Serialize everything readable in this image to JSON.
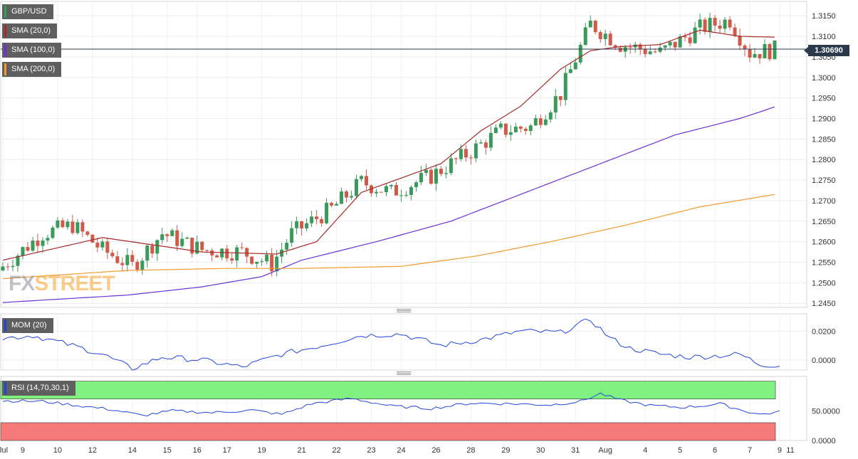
{
  "chart_data": [
    {
      "type": "candlestick",
      "symbol": "GBP/USD",
      "current_price_label": "1.30690",
      "current_price": 1.3069,
      "ylim": [
        1.244,
        1.3185
      ],
      "yticks": [
        "1.2450",
        "1.2500",
        "1.2550",
        "1.2600",
        "1.2650",
        "1.2700",
        "1.2750",
        "1.2800",
        "1.2850",
        "1.2900",
        "1.2950",
        "1.3000",
        "1.3050",
        "1.3100",
        "1.3150"
      ],
      "xticks": [
        "Jul",
        "9",
        "10",
        "12",
        "14",
        "15",
        "16",
        "17",
        "19",
        "21",
        "22",
        "23",
        "24",
        "26",
        "28",
        "29",
        "30",
        "31",
        "Aug",
        "4",
        "5",
        "6",
        "7",
        "9",
        "11"
      ],
      "series": [
        {
          "name": "GBP/USD",
          "color_up": "#3a9a5b",
          "color_down": "#d05a4a",
          "ohlc_start": 1.253,
          "ohlc_end": 1.3069,
          "bars": 156
        },
        {
          "name": "SMA (20,0)",
          "color": "#a52a2a",
          "anchors": [
            [
              0,
              1.2555
            ],
            [
              20,
              1.261
            ],
            [
              40,
              1.2575
            ],
            [
              55,
              1.257
            ],
            [
              63,
              1.26
            ],
            [
              72,
              1.272
            ],
            [
              80,
              1.2755
            ],
            [
              88,
              1.279
            ],
            [
              96,
              1.287
            ],
            [
              104,
              1.293
            ],
            [
              112,
              1.302
            ],
            [
              118,
              1.3065
            ],
            [
              124,
              1.3075
            ],
            [
              132,
              1.308
            ],
            [
              140,
              1.3115
            ],
            [
              148,
              1.31
            ],
            [
              155,
              1.3098
            ]
          ]
        },
        {
          "name": "SMA (100,0)",
          "color": "#6a2fd6",
          "anchors": [
            [
              0,
              1.2452
            ],
            [
              25,
              1.247
            ],
            [
              40,
              1.249
            ],
            [
              52,
              1.2515
            ],
            [
              60,
              1.2555
            ],
            [
              75,
              1.26
            ],
            [
              90,
              1.265
            ],
            [
              105,
              1.272
            ],
            [
              120,
              1.279
            ],
            [
              135,
              1.286
            ],
            [
              148,
              1.29
            ],
            [
              155,
              1.2928
            ]
          ]
        },
        {
          "name": "SMA (200,0)",
          "color": "#f29a2e",
          "anchors": [
            [
              0,
              1.251
            ],
            [
              25,
              1.253
            ],
            [
              45,
              1.2535
            ],
            [
              60,
              1.2535
            ],
            [
              80,
              1.254
            ],
            [
              95,
              1.2565
            ],
            [
              110,
              1.26
            ],
            [
              125,
              1.264
            ],
            [
              140,
              1.2685
            ],
            [
              155,
              1.2715
            ]
          ]
        }
      ]
    },
    {
      "type": "line",
      "name": "MOM (20)",
      "color": "#2244dd",
      "ylim": [
        -0.007,
        0.032
      ],
      "yticks": [
        "0.0000",
        "0.0200"
      ],
      "anchors": [
        [
          0,
          0.015
        ],
        [
          6,
          0.017
        ],
        [
          14,
          0.01
        ],
        [
          20,
          0.004
        ],
        [
          26,
          -0.006
        ],
        [
          32,
          0.002
        ],
        [
          40,
          0.0
        ],
        [
          48,
          -0.005
        ],
        [
          56,
          0.004
        ],
        [
          64,
          0.01
        ],
        [
          72,
          0.017
        ],
        [
          80,
          0.018
        ],
        [
          88,
          0.01
        ],
        [
          96,
          0.014
        ],
        [
          104,
          0.02
        ],
        [
          112,
          0.019
        ],
        [
          118,
          0.028
        ],
        [
          122,
          0.015
        ],
        [
          126,
          0.008
        ],
        [
          132,
          0.004
        ],
        [
          138,
          0.002
        ],
        [
          144,
          0.003
        ],
        [
          148,
          0.004
        ],
        [
          152,
          -0.003
        ],
        [
          156,
          -0.004
        ]
      ]
    },
    {
      "type": "line",
      "name": "RSI (14,70,30,1)",
      "color": "#2244dd",
      "ylim": [
        0,
        108
      ],
      "yticks": [
        "0.0000",
        "50.0000"
      ],
      "anchors": [
        [
          0,
          67
        ],
        [
          8,
          66
        ],
        [
          14,
          60
        ],
        [
          22,
          52
        ],
        [
          28,
          42
        ],
        [
          34,
          50
        ],
        [
          42,
          47
        ],
        [
          50,
          51
        ],
        [
          56,
          44
        ],
        [
          62,
          62
        ],
        [
          70,
          71
        ],
        [
          78,
          58
        ],
        [
          86,
          54
        ],
        [
          94,
          63
        ],
        [
          102,
          62
        ],
        [
          110,
          60
        ],
        [
          116,
          66
        ],
        [
          120,
          79
        ],
        [
          124,
          68
        ],
        [
          130,
          59
        ],
        [
          136,
          56
        ],
        [
          140,
          58
        ],
        [
          144,
          62
        ],
        [
          148,
          52
        ],
        [
          152,
          44
        ],
        [
          156,
          48
        ]
      ]
    }
  ],
  "legend": {
    "gbpusd": "GBP/USD",
    "sma20": "SMA (20,0)",
    "sma100": "SMA (100,0)",
    "sma200": "SMA (200,0)",
    "mom": "MOM (20)",
    "rsi": "RSI (14,70,30,1)"
  },
  "legend_colors": {
    "gbpusd": "#3a9a5b",
    "sma20": "#a52a2a",
    "sma100": "#6a2fd6",
    "sma200": "#f29a2e",
    "mom": "#2244dd",
    "rsi": "#2244dd"
  },
  "rsi_zones": {
    "overbought_color": "#80f080",
    "oversold_color": "#f77a7a",
    "upper": 70,
    "lower": 30
  },
  "watermark": {
    "fx": "FX",
    "street": "STREET"
  }
}
